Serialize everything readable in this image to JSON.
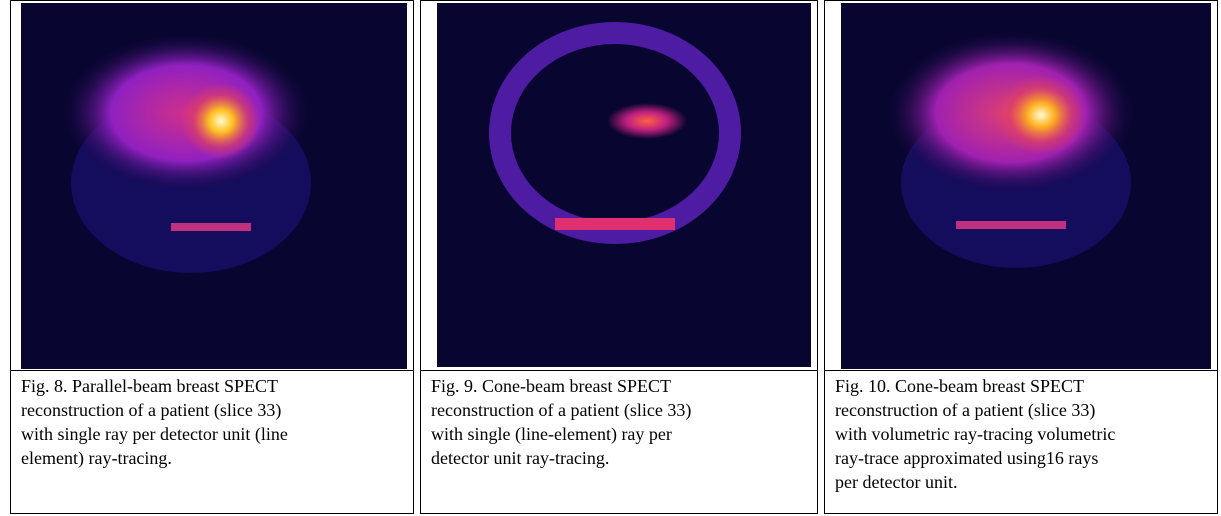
{
  "figures": [
    {
      "caption_lines": [
        "Fig. 8. Parallel-beam breast SPECT",
        "reconstruction of a patient (slice 33)",
        "with single ray per detector unit (line",
        "element) ray-tracing."
      ]
    },
    {
      "caption_lines": [
        "Fig. 9. Cone-beam breast SPECT",
        "reconstruction of a patient (slice 33)",
        "with single (line-element) ray per",
        "detector unit ray-tracing."
      ]
    },
    {
      "caption_lines": [
        "Fig. 10. Cone-beam breast SPECT",
        "reconstruction of a patient (slice 33)",
        "with volumetric ray-tracing volumetric",
        "ray-trace approximated using16 rays",
        "per detector unit."
      ]
    }
  ]
}
